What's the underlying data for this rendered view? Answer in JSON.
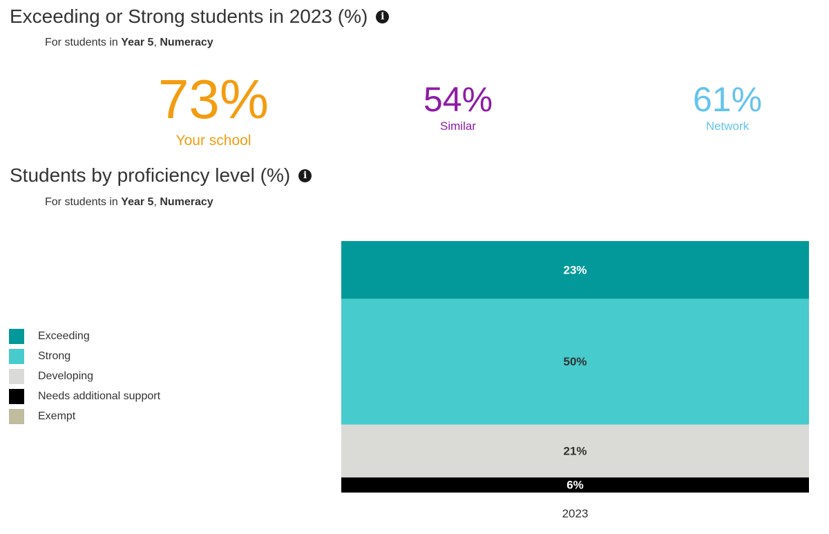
{
  "summary": {
    "title": "Exceeding or Strong students in 2023 (%)",
    "subtitle": {
      "prefix": "For students in ",
      "year": "Year 5",
      "sep": ", ",
      "domain": "Numeracy"
    },
    "info_icon": "info-icon",
    "stats": [
      {
        "id": "school",
        "value": "73%",
        "label": "Your school",
        "color": "#f39c12"
      },
      {
        "id": "similar",
        "value": "54%",
        "label": "Similar",
        "color": "#8e1ba6"
      },
      {
        "id": "network",
        "value": "61%",
        "label": "Network",
        "color": "#64c3ee"
      }
    ]
  },
  "proficiency": {
    "title": "Students by proficiency level (%)",
    "subtitle": {
      "prefix": "For students in ",
      "year": "Year 5",
      "sep": ", ",
      "domain": "Numeracy"
    },
    "info_icon": "info-icon"
  },
  "chart_data": {
    "type": "bar",
    "stacked": true,
    "title": "Students by proficiency level (%)",
    "categories": [
      "2023"
    ],
    "series": [
      {
        "name": "Exceeding",
        "values": [
          23
        ],
        "color": "#03999a",
        "label_color": "#ffffff"
      },
      {
        "name": "Strong",
        "values": [
          50
        ],
        "color": "#47cbcc",
        "label_color": "#333333"
      },
      {
        "name": "Developing",
        "values": [
          21
        ],
        "color": "#dadbd6",
        "label_color": "#333333"
      },
      {
        "name": "Needs additional support",
        "values": [
          6
        ],
        "color": "#000000",
        "label_color": "#ffffff"
      },
      {
        "name": "Exempt",
        "values": [
          0
        ],
        "color": "#bfbc9f",
        "label_color": "#333333"
      }
    ],
    "ylim": [
      0,
      100
    ],
    "legend": "left"
  }
}
